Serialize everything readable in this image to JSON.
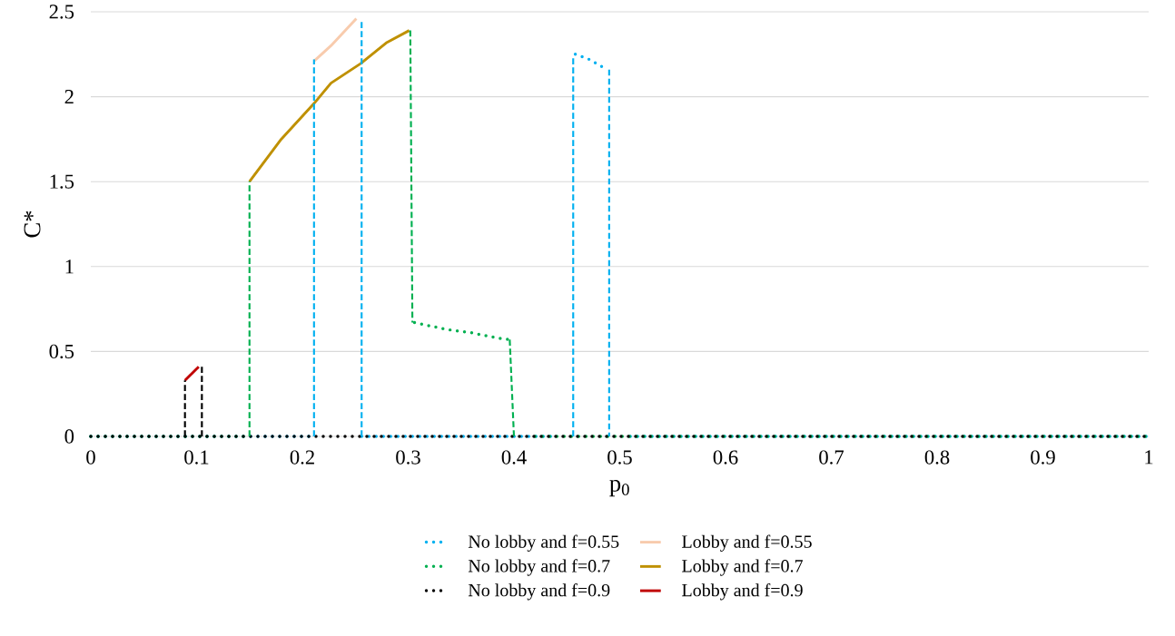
{
  "chart_data": {
    "type": "line",
    "xlabel": "p$_{0}$",
    "ylabel": "C*",
    "xlim": [
      0,
      1
    ],
    "ylim": [
      0,
      2.5
    ],
    "xticks": [
      0,
      0.1,
      0.2,
      0.3,
      0.4,
      0.5,
      0.6,
      0.7,
      0.8,
      0.9,
      1
    ],
    "yticks": [
      0,
      0.5,
      1,
      1.5,
      2,
      2.5
    ],
    "grid": "y",
    "legend": "bottom",
    "marker": "none",
    "series": [
      {
        "name": "No lobby and f=0.55",
        "color": "#00b0f0",
        "line_style": "dotted",
        "x": [
          0,
          0.211,
          0.23,
          0.256,
          0.44,
          0.45,
          0.458,
          0.471,
          0.488,
          0.495,
          0.51,
          1
        ],
        "values": [
          0,
          0,
          null,
          0,
          0,
          null,
          2.25,
          2.22,
          2.16,
          null,
          0,
          0
        ]
      },
      {
        "name": "Lobby and f=0.55",
        "color": "#f8cbad",
        "line_style": "solid",
        "x": [
          0.211,
          0.227,
          0.251
        ],
        "values": [
          2.21,
          2.3,
          2.46
        ]
      },
      {
        "name": "No lobby and f=0.7",
        "color": "#00b050",
        "line_style": "dotted",
        "x": [
          0,
          0.15,
          0.2,
          0.306,
          0.336,
          0.36,
          0.384,
          0.396,
          0.405,
          0.42,
          1
        ],
        "values": [
          0,
          0,
          null,
          0.67,
          0.63,
          0.61,
          0.58,
          0.57,
          null,
          0,
          0
        ]
      },
      {
        "name": "Lobby and f=0.7",
        "color": "#bf9000",
        "line_style": "solid",
        "x": [
          0.15,
          0.18,
          0.211,
          0.227,
          0.255,
          0.28,
          0.301
        ],
        "values": [
          1.5,
          1.75,
          1.96,
          2.08,
          2.195,
          2.32,
          2.39
        ]
      },
      {
        "name": "No lobby and f=0.9",
        "color": "#000000",
        "line_style": "dotted",
        "x": [
          0,
          1
        ],
        "values": [
          0,
          0
        ]
      },
      {
        "name": "Lobby and f=0.9",
        "color": "#c00000",
        "line_style": "solid",
        "x": [
          0.089,
          0.102
        ],
        "values": [
          0.33,
          0.41
        ]
      },
      {
        "color": "#00b0f0",
        "line_style": "dashed",
        "x": [
          0.211,
          0.211
        ],
        "values": [
          0,
          2.22
        ]
      },
      {
        "color": "#00b0f0",
        "line_style": "dashed",
        "x": [
          0.256,
          0.256
        ],
        "values": [
          2.44,
          0
        ]
      },
      {
        "color": "#00b0f0",
        "line_style": "dashed",
        "x": [
          0.456,
          0.456
        ],
        "values": [
          0,
          2.24
        ]
      },
      {
        "color": "#00b0f0",
        "line_style": "dashed",
        "x": [
          0.49,
          0.49
        ],
        "values": [
          2.16,
          0
        ]
      },
      {
        "color": "#00b050",
        "line_style": "dashed",
        "x": [
          0.15,
          0.15
        ],
        "values": [
          0,
          1.5
        ]
      },
      {
        "color": "#00b050",
        "line_style": "dashed",
        "x": [
          0.302,
          0.304
        ],
        "values": [
          2.39,
          0.67
        ]
      },
      {
        "color": "#00b050",
        "line_style": "dashed",
        "x": [
          0.396,
          0.4
        ],
        "values": [
          0.57,
          0
        ]
      },
      {
        "color": "#000000",
        "line_style": "dashed",
        "x": [
          0.089,
          0.089
        ],
        "values": [
          0,
          0.33
        ]
      },
      {
        "color": "#000000",
        "line_style": "dashed",
        "x": [
          0.105,
          0.105
        ],
        "values": [
          0.41,
          0
        ]
      }
    ]
  }
}
